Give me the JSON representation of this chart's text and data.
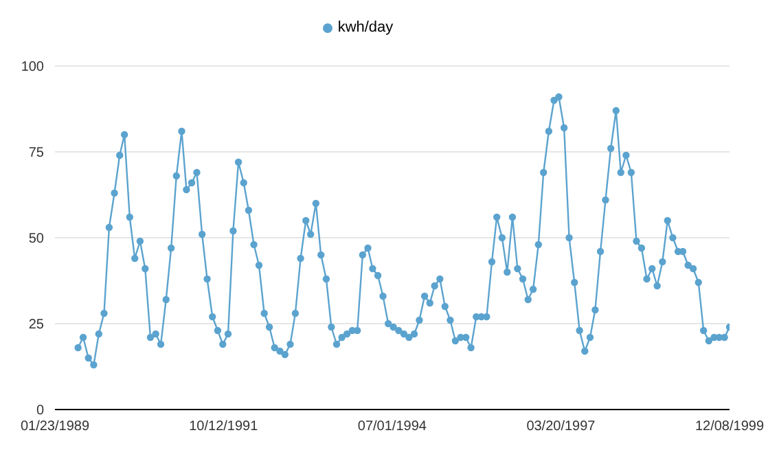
{
  "chart_data": {
    "type": "line",
    "legend": "top",
    "grid": "y",
    "marker": "circle",
    "line_style": "solid",
    "x": [
      "1989-06-08",
      "1989-07-08",
      "1989-08-08",
      "1989-09-08",
      "1989-10-08",
      "1989-11-08",
      "1989-12-08",
      "1990-01-08",
      "1990-02-08",
      "1990-03-08",
      "1990-04-08",
      "1990-05-08",
      "1990-06-08",
      "1990-07-08",
      "1990-08-08",
      "1990-09-08",
      "1990-10-08",
      "1990-11-08",
      "1990-12-08",
      "1991-01-08",
      "1991-02-08",
      "1991-03-08",
      "1991-04-08",
      "1991-05-08",
      "1991-06-08",
      "1991-07-08",
      "1991-08-08",
      "1991-09-08",
      "1991-10-08",
      "1991-11-08",
      "1991-12-08",
      "1992-01-08",
      "1992-02-08",
      "1992-03-08",
      "1992-04-08",
      "1992-05-08",
      "1992-06-08",
      "1992-07-08",
      "1992-08-08",
      "1992-09-08",
      "1992-10-08",
      "1992-11-08",
      "1992-12-08",
      "1993-01-08",
      "1993-02-08",
      "1993-03-08",
      "1993-04-08",
      "1993-05-08",
      "1993-06-08",
      "1993-07-08",
      "1993-08-08",
      "1993-09-08",
      "1993-10-08",
      "1993-11-08",
      "1993-12-08",
      "1994-01-08",
      "1994-02-08",
      "1994-03-08",
      "1994-04-08",
      "1994-05-08",
      "1994-06-08",
      "1994-07-08",
      "1994-08-08",
      "1994-09-08",
      "1994-10-08",
      "1994-11-08",
      "1994-12-08",
      "1995-01-08",
      "1995-02-08",
      "1995-03-08",
      "1995-04-08",
      "1995-05-08",
      "1995-06-08",
      "1995-07-08",
      "1995-08-08",
      "1995-09-08",
      "1995-10-08",
      "1995-11-08",
      "1995-12-08",
      "1996-01-08",
      "1996-02-08",
      "1996-03-08",
      "1996-04-08",
      "1996-05-08",
      "1996-06-08",
      "1996-07-08",
      "1996-08-08",
      "1996-09-08",
      "1996-10-08",
      "1996-11-08",
      "1996-12-08",
      "1997-01-08",
      "1997-02-08",
      "1997-03-08",
      "1997-04-08",
      "1997-05-08",
      "1997-06-08",
      "1997-07-08",
      "1997-08-08",
      "1997-09-08",
      "1997-10-08",
      "1997-11-08",
      "1997-12-08",
      "1998-01-08",
      "1998-02-08",
      "1998-03-08",
      "1998-04-08",
      "1998-05-08",
      "1998-06-08",
      "1998-07-08",
      "1998-08-08",
      "1998-09-08",
      "1998-10-08",
      "1998-11-08",
      "1998-12-08",
      "1999-01-08",
      "1999-02-08",
      "1999-03-08",
      "1999-04-08",
      "1999-05-08",
      "1999-06-08",
      "1999-07-08",
      "1999-08-08",
      "1999-09-08",
      "1999-10-08",
      "1999-11-08",
      "1999-12-08"
    ],
    "series": [
      {
        "name": "kwh/day",
        "color": "#5ba3cf",
        "values": [
          18,
          21,
          15,
          13,
          22,
          28,
          53,
          63,
          74,
          80,
          56,
          44,
          49,
          41,
          21,
          22,
          19,
          32,
          47,
          68,
          81,
          64,
          66,
          69,
          51,
          38,
          27,
          23,
          19,
          22,
          52,
          72,
          66,
          58,
          48,
          42,
          28,
          24,
          18,
          17,
          16,
          19,
          28,
          44,
          55,
          51,
          60,
          45,
          38,
          24,
          19,
          21,
          22,
          23,
          23,
          45,
          47,
          41,
          39,
          33,
          25,
          24,
          23,
          22,
          21,
          22,
          26,
          33,
          31,
          36,
          38,
          30,
          26,
          20,
          21,
          21,
          18,
          27,
          27,
          27,
          43,
          56,
          50,
          40,
          56,
          41,
          38,
          32,
          35,
          48,
          69,
          81,
          90,
          91,
          82,
          50,
          37,
          23,
          17,
          21,
          29,
          46,
          61,
          76,
          87,
          69,
          74,
          69,
          49,
          47,
          38,
          41,
          36,
          43,
          55,
          50,
          46,
          46,
          42,
          41,
          37,
          23,
          20,
          21,
          21,
          21,
          24
        ]
      }
    ],
    "xlim": [
      "1989-01-23",
      "1999-12-08"
    ],
    "xticks": [
      {
        "value": "1989-01-23",
        "label": "01/23/1989"
      },
      {
        "value": "1991-10-12",
        "label": "10/12/1991"
      },
      {
        "value": "1994-07-01",
        "label": "07/01/1994"
      },
      {
        "value": "1997-03-20",
        "label": "03/20/1997"
      },
      {
        "value": "1999-12-08",
        "label": "12/08/1999"
      }
    ],
    "ylim": [
      0,
      100
    ],
    "yticks": [
      0,
      25,
      50,
      75,
      100
    ]
  }
}
